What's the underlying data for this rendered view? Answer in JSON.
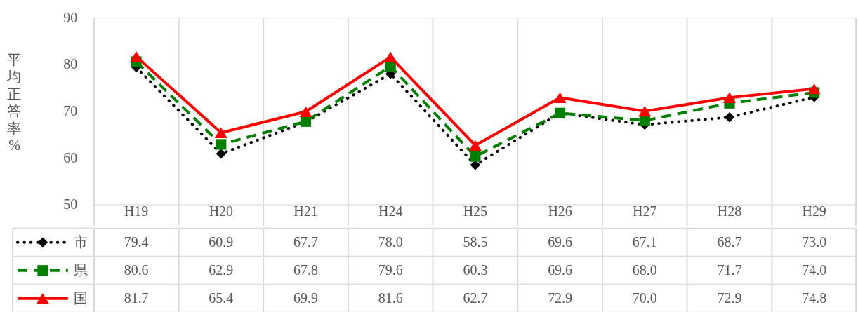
{
  "chart_data": {
    "type": "line",
    "ylabel": "平均正答率 %",
    "categories": [
      "H19",
      "H20",
      "H21",
      "H24",
      "H25",
      "H26",
      "H27",
      "H28",
      "H29"
    ],
    "series": [
      {
        "name": "市",
        "color": "#000000",
        "line_style": "dotted",
        "marker": "diamond",
        "values": [
          79.4,
          60.9,
          67.7,
          78.0,
          58.5,
          69.6,
          67.1,
          68.7,
          73.0
        ],
        "value_labels": [
          "79.4",
          "60.9",
          "67.7",
          "78.0",
          "58.5",
          "69.6",
          "67.1",
          "68.7",
          "73.0"
        ]
      },
      {
        "name": "県",
        "color": "#008000",
        "line_style": "dashed",
        "marker": "square",
        "values": [
          80.6,
          62.9,
          67.8,
          79.6,
          60.3,
          69.6,
          68.0,
          71.7,
          74.0
        ],
        "value_labels": [
          "80.6",
          "62.9",
          "67.8",
          "79.6",
          "60.3",
          "69.6",
          "68.0",
          "71.7",
          "74.0"
        ]
      },
      {
        "name": "国",
        "color": "#ff0000",
        "line_style": "solid",
        "marker": "triangle",
        "values": [
          81.7,
          65.4,
          69.9,
          81.6,
          62.7,
          72.9,
          70.0,
          72.9,
          74.8
        ],
        "value_labels": [
          "81.7",
          "65.4",
          "69.9",
          "81.6",
          "62.7",
          "72.9",
          "70.0",
          "72.9",
          "74.8"
        ]
      }
    ],
    "ylim": [
      50,
      90
    ],
    "yticks": [
      50,
      60,
      70,
      80,
      90
    ],
    "grid": "x",
    "legend": "bottom left"
  }
}
